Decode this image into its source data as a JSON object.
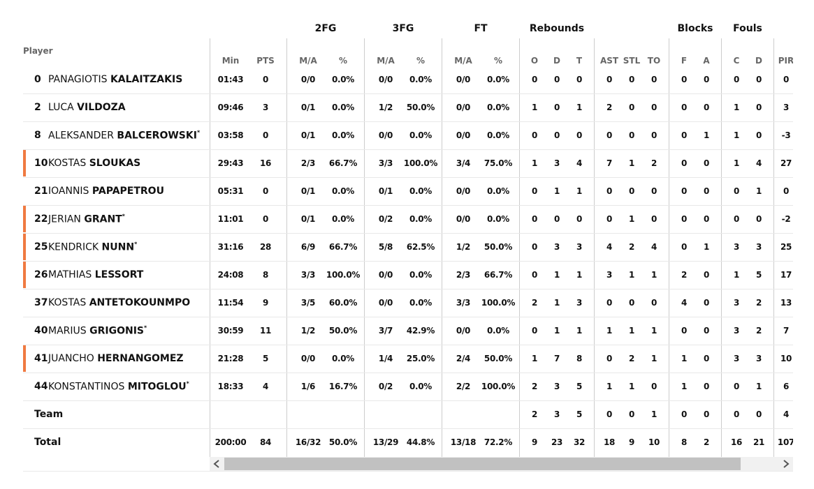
{
  "table": {
    "groups": [
      "2FG",
      "3FG",
      "FT",
      "Rebounds",
      "Blocks",
      "Fouls"
    ],
    "player_header": "Player",
    "columns": [
      "Min",
      "PTS",
      "M/A",
      "%",
      "M/A",
      "%",
      "M/A",
      "%",
      "O",
      "D",
      "T",
      "AST",
      "STL",
      "TO",
      "F",
      "A",
      "C",
      "D",
      "PIR"
    ],
    "rows": [
      {
        "number": "0",
        "first": "PANAGIOTIS",
        "last": "KALAITZAKIS",
        "starter": false,
        "stats": [
          "01:43",
          "0",
          "0/0",
          "0.0%",
          "0/0",
          "0.0%",
          "0/0",
          "0.0%",
          "0",
          "0",
          "0",
          "0",
          "0",
          "0",
          "0",
          "0",
          "0",
          "0",
          "0"
        ]
      },
      {
        "number": "2",
        "first": "LUCA",
        "last": "VILDOZA",
        "starter": false,
        "stats": [
          "09:46",
          "3",
          "0/1",
          "0.0%",
          "1/2",
          "50.0%",
          "0/0",
          "0.0%",
          "1",
          "0",
          "1",
          "2",
          "0",
          "0",
          "0",
          "0",
          "1",
          "0",
          "3"
        ]
      },
      {
        "number": "8",
        "first": "ALEKSANDER",
        "last": "BALCEROWSKI",
        "mark": "*",
        "starter": false,
        "stats": [
          "03:58",
          "0",
          "0/1",
          "0.0%",
          "0/0",
          "0.0%",
          "0/0",
          "0.0%",
          "0",
          "0",
          "0",
          "0",
          "0",
          "0",
          "0",
          "1",
          "1",
          "0",
          "-3"
        ]
      },
      {
        "number": "10",
        "first": "KOSTAS",
        "last": "SLOUKAS",
        "starter": true,
        "stats": [
          "29:43",
          "16",
          "2/3",
          "66.7%",
          "3/3",
          "100.0%",
          "3/4",
          "75.0%",
          "1",
          "3",
          "4",
          "7",
          "1",
          "2",
          "0",
          "0",
          "1",
          "4",
          "27"
        ]
      },
      {
        "number": "21",
        "first": "IOANNIS",
        "last": "PAPAPETROU",
        "starter": false,
        "stats": [
          "05:31",
          "0",
          "0/1",
          "0.0%",
          "0/1",
          "0.0%",
          "0/0",
          "0.0%",
          "0",
          "1",
          "1",
          "0",
          "0",
          "0",
          "0",
          "0",
          "0",
          "1",
          "0"
        ]
      },
      {
        "number": "22",
        "first": "JERIAN",
        "last": "GRANT",
        "mark": "*",
        "starter": true,
        "stats": [
          "11:01",
          "0",
          "0/1",
          "0.0%",
          "0/2",
          "0.0%",
          "0/0",
          "0.0%",
          "0",
          "0",
          "0",
          "0",
          "1",
          "0",
          "0",
          "0",
          "0",
          "0",
          "-2"
        ]
      },
      {
        "number": "25",
        "first": "KENDRICK",
        "last": "NUNN",
        "mark": "*",
        "starter": true,
        "stats": [
          "31:16",
          "28",
          "6/9",
          "66.7%",
          "5/8",
          "62.5%",
          "1/2",
          "50.0%",
          "0",
          "3",
          "3",
          "4",
          "2",
          "4",
          "0",
          "1",
          "3",
          "3",
          "25"
        ]
      },
      {
        "number": "26",
        "first": "MATHIAS",
        "last": "LESSORT",
        "starter": true,
        "stats": [
          "24:08",
          "8",
          "3/3",
          "100.0%",
          "0/0",
          "0.0%",
          "2/3",
          "66.7%",
          "0",
          "1",
          "1",
          "3",
          "1",
          "1",
          "2",
          "0",
          "1",
          "5",
          "17"
        ]
      },
      {
        "number": "37",
        "first": "KOSTAS",
        "last": "ANTETOKOUNMPO",
        "starter": false,
        "stats": [
          "11:54",
          "9",
          "3/5",
          "60.0%",
          "0/0",
          "0.0%",
          "3/3",
          "100.0%",
          "2",
          "1",
          "3",
          "0",
          "0",
          "0",
          "4",
          "0",
          "3",
          "2",
          "13"
        ]
      },
      {
        "number": "40",
        "first": "MARIUS",
        "last": "GRIGONIS",
        "mark": "*",
        "starter": false,
        "stats": [
          "30:59",
          "11",
          "1/2",
          "50.0%",
          "3/7",
          "42.9%",
          "0/0",
          "0.0%",
          "0",
          "1",
          "1",
          "1",
          "1",
          "1",
          "0",
          "0",
          "3",
          "2",
          "7"
        ]
      },
      {
        "number": "41",
        "first": "JUANCHO",
        "last": "HERNANGOMEZ",
        "starter": true,
        "stats": [
          "21:28",
          "5",
          "0/0",
          "0.0%",
          "1/4",
          "25.0%",
          "2/4",
          "50.0%",
          "1",
          "7",
          "8",
          "0",
          "2",
          "1",
          "1",
          "0",
          "3",
          "3",
          "10"
        ]
      },
      {
        "number": "44",
        "first": "KONSTANTINOS",
        "last": "MITOGLOU",
        "mark": "*",
        "starter": false,
        "stats": [
          "18:33",
          "4",
          "1/6",
          "16.7%",
          "0/2",
          "0.0%",
          "2/2",
          "100.0%",
          "2",
          "3",
          "5",
          "1",
          "1",
          "0",
          "1",
          "0",
          "0",
          "1",
          "6"
        ]
      },
      {
        "label": "Team",
        "stats": [
          null,
          null,
          null,
          null,
          null,
          null,
          null,
          null,
          "2",
          "3",
          "5",
          "0",
          "0",
          "1",
          "0",
          "0",
          "0",
          "0",
          "4"
        ]
      },
      {
        "label": "Total",
        "stats": [
          "200:00",
          "84",
          "16/32",
          "50.0%",
          "13/29",
          "44.8%",
          "13/18",
          "72.2%",
          "9",
          "23",
          "32",
          "18",
          "9",
          "10",
          "8",
          "2",
          "16",
          "21",
          "107"
        ]
      }
    ]
  }
}
